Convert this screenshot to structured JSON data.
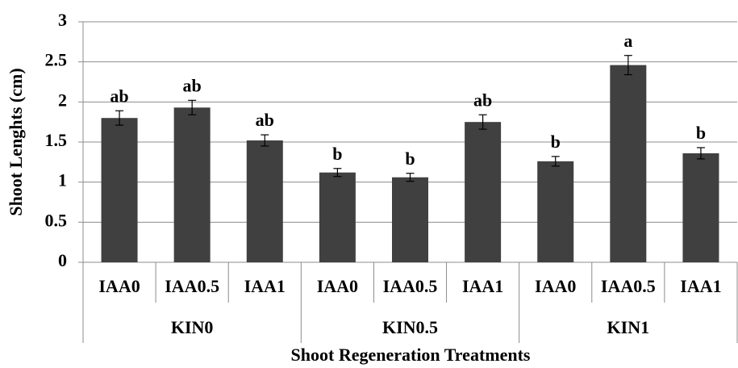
{
  "chart_data": {
    "type": "bar",
    "y_label": "Shoot Lenghts (cm)",
    "x_label": "Shoot Regeneration Treatments",
    "categories": [
      "IAA0",
      "IAA0.5",
      "IAA1",
      "IAA0",
      "IAA0.5",
      "IAA1",
      "IAA0",
      "IAA0.5",
      "IAA1"
    ],
    "groups": [
      "KIN0",
      "KIN0.5",
      "KIN1"
    ],
    "values": [
      1.8,
      1.93,
      1.52,
      1.12,
      1.06,
      1.75,
      1.26,
      2.46,
      1.36
    ],
    "errors": [
      0.09,
      0.09,
      0.07,
      0.05,
      0.05,
      0.09,
      0.06,
      0.12,
      0.07
    ],
    "letters": [
      "ab",
      "ab",
      "ab",
      "b",
      "b",
      "ab",
      "b",
      "a",
      "b"
    ],
    "color": "#404040",
    "ylim": [
      0,
      3
    ],
    "yticks": [
      0,
      0.5,
      1,
      1.5,
      2,
      2.5,
      3
    ],
    "grid": true
  }
}
